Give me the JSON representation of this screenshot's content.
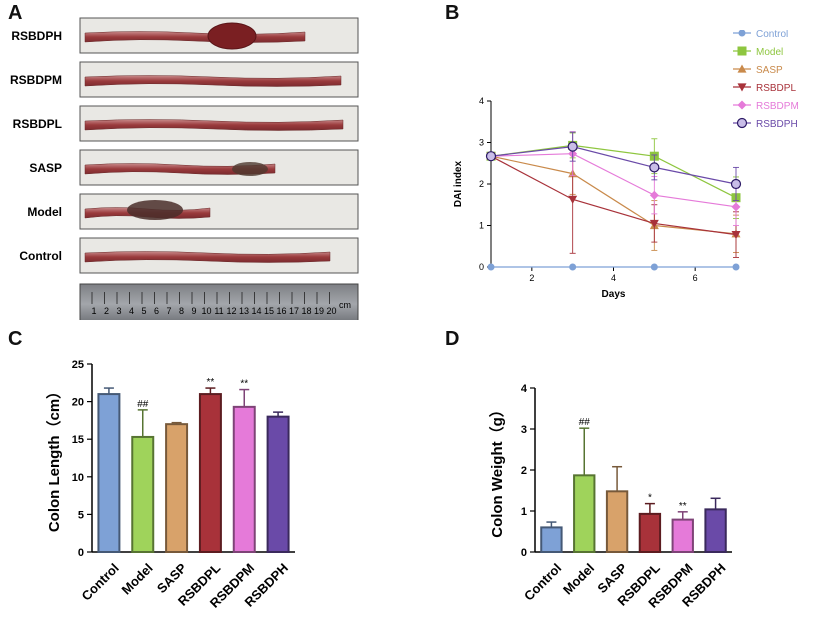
{
  "panels": {
    "a": "A",
    "b": "B",
    "c": "C",
    "d": "D"
  },
  "colors": {
    "Control": "#7ea1d6",
    "Model": "#9fd35b",
    "SASP": "#d8a26a",
    "RSBDPL": "#a8323a",
    "RSBDPM": "#e57ad9",
    "RSBDPH": "#6a4aa8"
  },
  "photo": {
    "rows": [
      "RSBDPH",
      "RSBDPM",
      "RSBDPL",
      "SASP",
      "Model",
      "Control"
    ],
    "ruler": {
      "numbers": [
        "1",
        "2",
        "3",
        "4",
        "5",
        "6",
        "7",
        "8",
        "9",
        "10",
        "11",
        "12",
        "13",
        "14",
        "15",
        "16",
        "17",
        "18",
        "19",
        "20"
      ],
      "unit": "cm"
    }
  },
  "chart_data": [
    {
      "id": "B",
      "type": "line",
      "xlabel": "Days",
      "ylabel": "DAI index",
      "xlim": [
        1,
        7
      ],
      "ylim": [
        0,
        4
      ],
      "xticks": [
        "2",
        "4",
        "6"
      ],
      "yticks": [
        "0",
        "1",
        "2",
        "3",
        "4"
      ],
      "x": [
        1,
        3,
        5,
        7
      ],
      "series": [
        {
          "name": "Control",
          "values": [
            0,
            0,
            0,
            0
          ],
          "err": [
            0,
            0,
            0,
            0
          ],
          "marker": "circle",
          "color": "#7ea1d6"
        },
        {
          "name": "Model",
          "values": [
            2.67,
            2.93,
            2.67,
            1.67
          ],
          "err": [
            0,
            0.3,
            0.42,
            0.5
          ],
          "marker": "square",
          "color": "#8ec63f"
        },
        {
          "name": "SASP",
          "values": [
            2.67,
            2.25,
            1.0,
            0.8
          ],
          "err": [
            0,
            0.5,
            0.6,
            0.45
          ],
          "marker": "triangle-up",
          "color": "#c98a4b"
        },
        {
          "name": "RSBDPL",
          "values": [
            2.67,
            1.63,
            1.05,
            0.78
          ],
          "err": [
            0,
            1.3,
            0.45,
            0.55
          ],
          "marker": "triangle-down",
          "color": "#a8323a"
        },
        {
          "name": "RSBDPM",
          "values": [
            2.67,
            2.73,
            1.73,
            1.45
          ],
          "err": [
            0,
            0.53,
            0.45,
            0.45
          ],
          "marker": "diamond",
          "color": "#e57ad9"
        },
        {
          "name": "RSBDPH",
          "values": [
            2.67,
            2.9,
            2.4,
            2.0
          ],
          "err": [
            0,
            0.35,
            0.3,
            0.4
          ],
          "marker": "circle-open",
          "color": "#6a4aa8"
        }
      ],
      "legend": "right"
    },
    {
      "id": "C",
      "type": "bar",
      "ylabel": "Colon Length（cm）",
      "ylim": [
        0,
        25
      ],
      "yticks": [
        "0",
        "5",
        "10",
        "15",
        "20",
        "25"
      ],
      "categories": [
        "Control",
        "Model",
        "SASP",
        "RSBDPL",
        "RSBDPM",
        "RSBDPH"
      ],
      "values": [
        21.0,
        15.3,
        17.0,
        21.0,
        19.3,
        18.0
      ],
      "err": [
        0.8,
        3.6,
        0.2,
        0.8,
        2.3,
        0.6
      ],
      "annotations": [
        "",
        "##",
        "",
        "**",
        "**",
        ""
      ]
    },
    {
      "id": "D",
      "type": "bar",
      "ylabel": "Colon Weight（g）",
      "ylim": [
        0,
        4
      ],
      "yticks": [
        "0",
        "1",
        "2",
        "3",
        "4"
      ],
      "categories": [
        "Control",
        "Model",
        "SASP",
        "RSBDPL",
        "RSBDPM",
        "RSBDPH"
      ],
      "values": [
        0.6,
        1.87,
        1.48,
        0.93,
        0.79,
        1.04
      ],
      "err": [
        0.13,
        1.15,
        0.6,
        0.25,
        0.19,
        0.27
      ],
      "annotations": [
        "",
        "##",
        "",
        "*",
        "**",
        ""
      ]
    }
  ]
}
